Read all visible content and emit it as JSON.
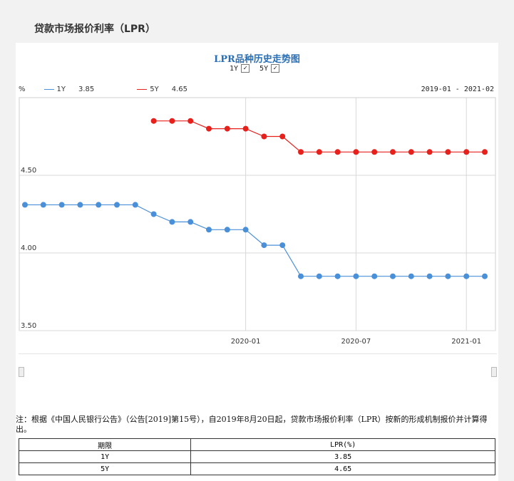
{
  "page": {
    "title": "贷款市场报价利率（LPR）"
  },
  "chart_data": {
    "type": "line",
    "title": "LPR品种历史走势图",
    "unit_label": "%",
    "date_range": "2019-01 - 2021-02",
    "toggles": [
      {
        "label": "1Y",
        "checked": true
      },
      {
        "label": "5Y",
        "checked": true
      }
    ],
    "ylim": [
      3.5,
      5.0
    ],
    "yticks": [
      "3.50",
      "4.00",
      "4.50"
    ],
    "ytick_values": [
      3.5,
      4.0,
      4.5
    ],
    "xticks": [
      {
        "label": "2020-01",
        "index": 12
      },
      {
        "label": "2020-07",
        "index": 18
      },
      {
        "label": "2021-01",
        "index": 24
      }
    ],
    "x": [
      "2019-01",
      "2019-02",
      "2019-03",
      "2019-04",
      "2019-05",
      "2019-06",
      "2019-07",
      "2019-08",
      "2019-09",
      "2019-10",
      "2019-11",
      "2019-12",
      "2020-01",
      "2020-02",
      "2020-03",
      "2020-04",
      "2020-05",
      "2020-06",
      "2020-07",
      "2020-08",
      "2020-09",
      "2020-10",
      "2020-11",
      "2020-12",
      "2021-01",
      "2021-02"
    ],
    "series": [
      {
        "name": "1Y",
        "latest": "3.85",
        "color": "#4a90d9",
        "values": [
          4.31,
          4.31,
          4.31,
          4.31,
          4.31,
          4.31,
          4.31,
          4.25,
          4.2,
          4.2,
          4.15,
          4.15,
          4.15,
          4.05,
          4.05,
          3.85,
          3.85,
          3.85,
          3.85,
          3.85,
          3.85,
          3.85,
          3.85,
          3.85,
          3.85,
          3.85
        ]
      },
      {
        "name": "5Y",
        "latest": "4.65",
        "color": "#e8201c",
        "values": [
          null,
          null,
          null,
          null,
          null,
          null,
          null,
          4.85,
          4.85,
          4.85,
          4.8,
          4.8,
          4.8,
          4.75,
          4.75,
          4.65,
          4.65,
          4.65,
          4.65,
          4.65,
          4.65,
          4.65,
          4.65,
          4.65,
          4.65,
          4.65
        ]
      }
    ]
  },
  "note": "注：根据《中国人民银行公告》（公告[2019]第15号），自2019年8月20日起，贷款市场报价利率（LPR）按新的形成机制报价并计算得出。",
  "table": {
    "headers": [
      "期限",
      "LPR(%)"
    ],
    "rows": [
      [
        "1Y",
        "3.85"
      ],
      [
        "5Y",
        "4.65"
      ]
    ]
  }
}
